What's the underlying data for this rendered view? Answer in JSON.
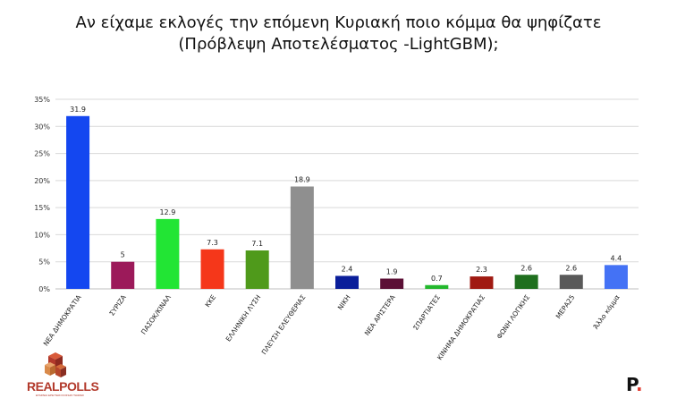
{
  "title": {
    "line1": "Αν είχαμε εκλογές την επόμενη Κυριακή ποιο κόμμα θα ψηφίζατε",
    "line2": "(Πρόβλεψη Αποτελέσματος -LightGBM);"
  },
  "chart_data": {
    "type": "bar",
    "title": "Αν είχαμε εκλογές την επόμενη Κυριακή ποιο κόμμα θα ψηφίζατε (Πρόβλεψη Αποτελέσματος -LightGBM);",
    "categories": [
      "ΝΕΑ ΔΗΜΟΚΡΑΤΙΑ",
      "ΣΥΡΙΖΑ",
      "ΠΑΣΟΚ/ΚΙΝΑΛ",
      "ΚΚΕ",
      "ΕΛΛΗΝΙΚΗ ΛΥΣΗ",
      "ΠΛΕΥΣΗ ΕΛΕΥΘΕΡΙΑΣ",
      "ΝΙΚΗ",
      "ΝΕΑ ΑΡΙΣΤΕΡΑ",
      "ΣΠΑΡΤΙΑΤΕΣ",
      "ΚΙΝΗΜΑ ΔΗΜΟΚΡΑΤΙΑΣ",
      "ΦΩΝΗ ΛΟΓΙΚΗΣ",
      "ΜΕΡΑ25",
      "Άλλο κόμμα"
    ],
    "values": [
      31.9,
      5,
      12.9,
      7.3,
      7.1,
      18.9,
      2.4,
      1.9,
      0.7,
      2.3,
      2.6,
      2.6,
      4.4
    ],
    "value_labels": [
      "31.9",
      "5",
      "12.9",
      "7.3",
      "7.1",
      "18.9",
      "2.4",
      "1.9",
      "0.7",
      "2.3",
      "2.6",
      "2.6",
      "4.4"
    ],
    "colors": [
      "#1447f0",
      "#9c1a5a",
      "#22e534",
      "#f5371a",
      "#4f9a1b",
      "#8f8f8f",
      "#0a1e9a",
      "#5b0f35",
      "#23b82d",
      "#a01a12",
      "#1f6f1e",
      "#595959",
      "#4472f5"
    ],
    "yticks": [
      "0%",
      "5%",
      "10%",
      "15%",
      "20%",
      "25%",
      "30%",
      "35%"
    ],
    "ylim": [
      0,
      35
    ],
    "grid": true,
    "legend": "none"
  },
  "logos": {
    "left": "REALPOLLS",
    "left_sub": "ΕΤΑΙΡΕΙΑ ΕΡΕΥΝΩΝ ΚΟΙΝΗΣ ΓΝΩΜΗΣ",
    "right": "P",
    "right_accent": "#e03a2f"
  }
}
